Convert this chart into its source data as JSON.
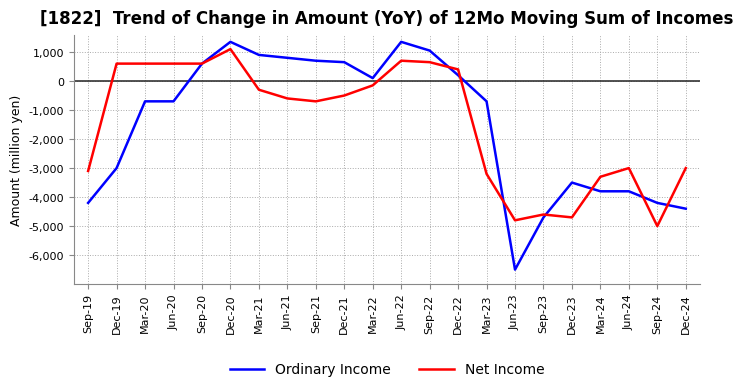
{
  "title": "[1822]  Trend of Change in Amount (YoY) of 12Mo Moving Sum of Incomes",
  "ylabel": "Amount (million yen)",
  "background_color": "#ffffff",
  "grid_color": "#aaaaaa",
  "x_labels": [
    "Sep-19",
    "Dec-19",
    "Mar-20",
    "Jun-20",
    "Sep-20",
    "Dec-20",
    "Mar-21",
    "Jun-21",
    "Sep-21",
    "Dec-21",
    "Mar-22",
    "Jun-22",
    "Sep-22",
    "Dec-22",
    "Mar-23",
    "Jun-23",
    "Sep-23",
    "Dec-23",
    "Mar-24",
    "Jun-24",
    "Sep-24",
    "Dec-24"
  ],
  "ordinary_income": [
    -4200,
    -3000,
    -700,
    -700,
    600,
    1350,
    900,
    800,
    700,
    650,
    100,
    1350,
    1050,
    200,
    -700,
    -6500,
    -4700,
    -3500,
    -3800,
    -3800,
    -4200,
    -4400
  ],
  "net_income": [
    -3100,
    600,
    600,
    600,
    600,
    1100,
    -300,
    -600,
    -700,
    -500,
    -150,
    700,
    650,
    400,
    -3200,
    -4800,
    -4600,
    -4700,
    -3300,
    -3000,
    -5000,
    -3000
  ],
  "ordinary_income_color": "#0000ff",
  "net_income_color": "#ff0000",
  "ylim_min": -7000,
  "ylim_max": 1600,
  "yticks": [
    1000,
    0,
    -1000,
    -2000,
    -3000,
    -4000,
    -5000,
    -6000
  ],
  "legend_labels": [
    "Ordinary Income",
    "Net Income"
  ],
  "line_width": 1.8,
  "title_fontsize": 12,
  "axis_label_fontsize": 9,
  "tick_fontsize": 8,
  "legend_fontsize": 10
}
